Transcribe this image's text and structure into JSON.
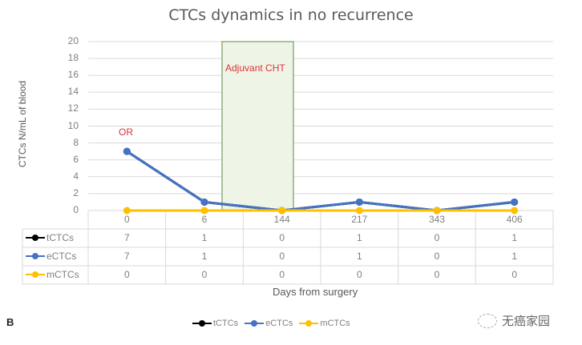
{
  "chart_data": {
    "type": "line",
    "title": "CTCs dynamics in no recurrence",
    "xlabel": "Days from surgery",
    "ylabel": "CTCs N/mL of blood",
    "ylim": [
      0,
      20
    ],
    "yticks": [
      "0",
      "2",
      "4",
      "6",
      "8",
      "10",
      "12",
      "14",
      "16",
      "18",
      "20"
    ],
    "categories": [
      "0",
      "6",
      "144",
      "217",
      "343",
      "406"
    ],
    "series": [
      {
        "name": "tCTCs",
        "color": "#000000",
        "values": [
          7,
          1,
          0,
          1,
          0,
          1
        ]
      },
      {
        "name": "eCTCs",
        "color": "#4472c4",
        "values": [
          7,
          1,
          0,
          1,
          0,
          1
        ]
      },
      {
        "name": "mCTCs",
        "color": "#ffc000",
        "values": [
          0,
          0,
          0,
          0,
          0,
          0
        ]
      }
    ],
    "annotations": [
      {
        "text": "OR",
        "x": "0",
        "color": "#e0303a"
      },
      {
        "text": "Adjuvant CHT",
        "region": "between 6 and 144",
        "color": "#e0303a",
        "fill": "#eef5e6"
      }
    ],
    "grid": true,
    "legend_position": "bottom",
    "data_table": true
  },
  "figure": {
    "panel_label": "B",
    "watermark": "无癌家园"
  }
}
